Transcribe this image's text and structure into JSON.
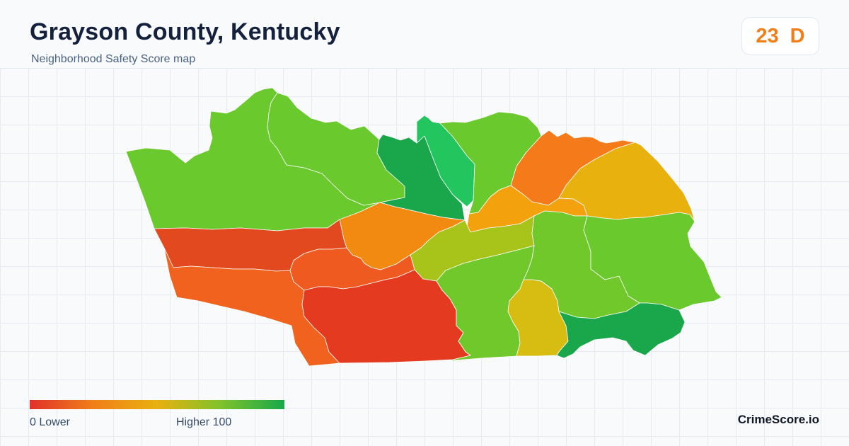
{
  "header": {
    "title": "Grayson County, Kentucky",
    "subtitle": "Neighborhood Safety Score map"
  },
  "score_card": {
    "score": "23",
    "grade": "D",
    "color": "#f07f1a"
  },
  "legend": {
    "low_label": "0  Lower",
    "high_label": "Higher  100",
    "gradient_colors": [
      "#e0312a",
      "#f07f1a",
      "#e8b10f",
      "#7fc22a",
      "#18a84a"
    ]
  },
  "brand": "CrimeScore.io",
  "map": {
    "regions": [
      {
        "name": "northwest",
        "fill": "#6ac92c"
      },
      {
        "name": "north-central-west",
        "fill": "#6ac92c"
      },
      {
        "name": "north-center",
        "fill": "#1aa64b"
      },
      {
        "name": "north-upper",
        "fill": "#22c55e"
      },
      {
        "name": "north-northeast",
        "fill": "#6ac92c"
      },
      {
        "name": "northeast-orange",
        "fill": "#f47a1a"
      },
      {
        "name": "far-northeast",
        "fill": "#e9b10e"
      },
      {
        "name": "center-orange",
        "fill": "#f28a12"
      },
      {
        "name": "center-small",
        "fill": "#f3a10d"
      },
      {
        "name": "center-olive",
        "fill": "#a8c41a"
      },
      {
        "name": "center-south-olive",
        "fill": "#bcc216"
      },
      {
        "name": "west-red",
        "fill": "#e2491f"
      },
      {
        "name": "southwest-orange",
        "fill": "#f0621d"
      },
      {
        "name": "south-center-orange",
        "fill": "#ee5a1f"
      },
      {
        "name": "south-red",
        "fill": "#e33a20"
      },
      {
        "name": "south-green",
        "fill": "#70c82a"
      },
      {
        "name": "south-yellow",
        "fill": "#d7bd12"
      },
      {
        "name": "east-green",
        "fill": "#70c82a"
      },
      {
        "name": "far-east-green",
        "fill": "#6ac92c"
      },
      {
        "name": "southeast-darkgreen",
        "fill": "#1aa64b"
      }
    ]
  }
}
